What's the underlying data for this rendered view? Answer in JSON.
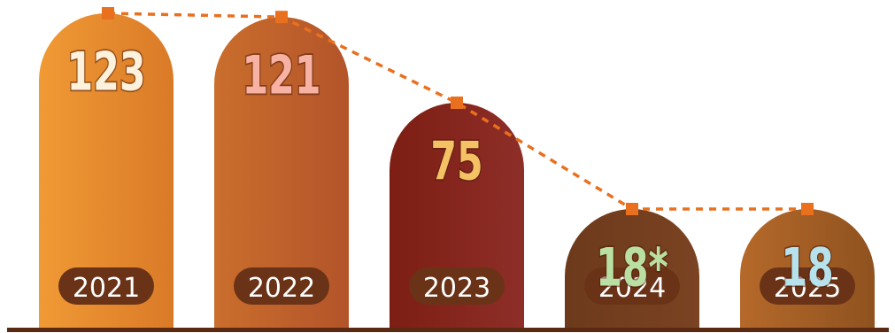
{
  "chart_data": {
    "type": "bar",
    "title": "",
    "xlabel": "",
    "ylabel": "",
    "categories": [
      "2021",
      "2022",
      "2023",
      "2024",
      "2025"
    ],
    "values": [
      123,
      121,
      75,
      18,
      18
    ],
    "value_labels": [
      "123",
      "121",
      "75",
      "18*",
      "18"
    ],
    "ylim": [
      0,
      130
    ],
    "grid": false,
    "legend": "none",
    "trend_line": {
      "style": "dashed",
      "color": "#e8701f"
    },
    "bar_colors": [
      [
        "#f09a35",
        "#da7a28"
      ],
      [
        "#ca6e2d",
        "#b3542a"
      ],
      [
        "#7d1e14",
        "#8e2e28"
      ],
      [
        "#6d3a1c",
        "#7a4322"
      ],
      [
        "#b5692a",
        "#8f521f"
      ]
    ],
    "value_label_colors": [
      "#fff2dc",
      "#f8b2a3",
      "#f4c264",
      "#b9e0a2",
      "#b5e2ec"
    ],
    "year_pill_color": "#6a3317",
    "baseline_color": "#5a2a12"
  }
}
